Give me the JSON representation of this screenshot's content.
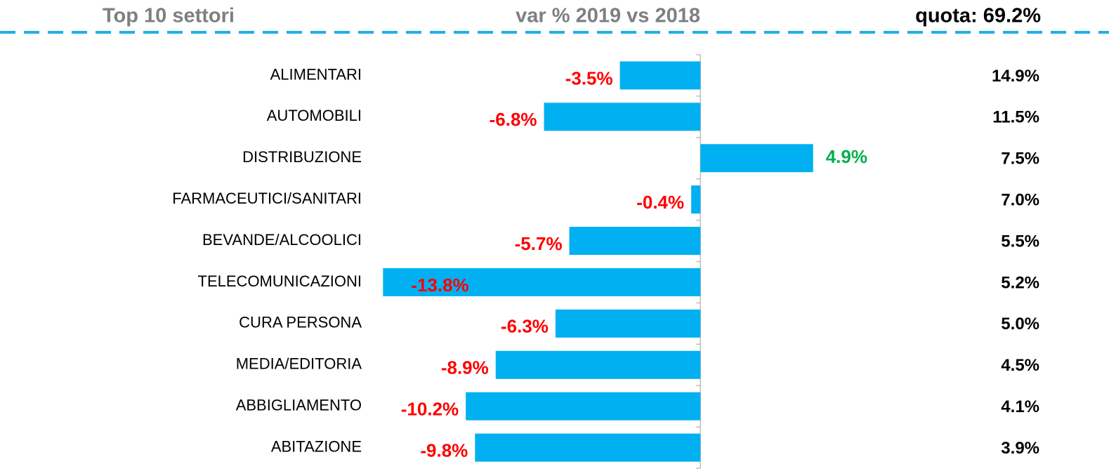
{
  "chart_data": {
    "type": "bar",
    "orientation": "horizontal",
    "title": "Top 10 settori",
    "subtitle": "var %  2019 vs 2018",
    "share_title": "quota: 69.2%",
    "categories": [
      "ALIMENTARI",
      "AUTOMOBILI",
      "DISTRIBUZIONE",
      "FARMACEUTICI/SANITARI",
      "BEVANDE/ALCOOLICI",
      "TELECOMUNICAZIONI",
      "CURA PERSONA",
      "MEDIA/EDITORIA",
      "ABBIGLIAMENTO",
      "ABITAZIONE"
    ],
    "values": [
      -3.5,
      -6.8,
      4.9,
      -0.4,
      -5.7,
      -13.8,
      -6.3,
      -8.9,
      -10.2,
      -9.8
    ],
    "value_labels": [
      "-3.5%",
      "-6.8%",
      "4.9%",
      "-0.4%",
      "-5.7%",
      "-13.8%",
      "-6.3%",
      "-8.9%",
      "-10.2%",
      "-9.8%"
    ],
    "share_values": [
      14.9,
      11.5,
      7.5,
      7.0,
      5.5,
      5.2,
      5.0,
      4.5,
      4.1,
      3.9
    ],
    "share_labels": [
      "14.9%",
      "11.5%",
      "7.5%",
      "7.0%",
      "5.5%",
      "5.2%",
      "5.0%",
      "4.5%",
      "4.1%",
      "3.9%"
    ],
    "color": "#00b0f0",
    "negative_label_color": "#ff0000",
    "positive_label_color": "#00b050",
    "xlim": [
      -15,
      6
    ],
    "grid": false
  }
}
